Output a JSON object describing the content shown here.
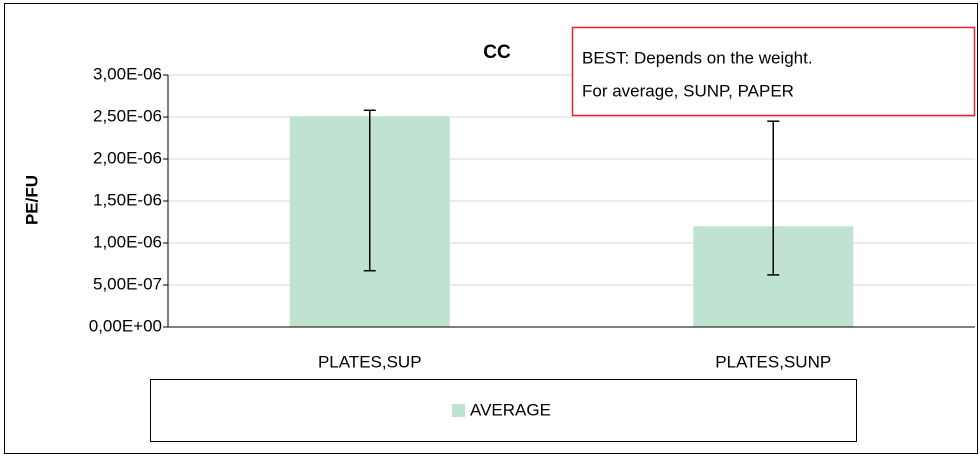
{
  "chart_data": {
    "type": "bar",
    "title": "CC",
    "y_label": "PE/FU",
    "annotation": [
      "BEST: Depends on the weight.",
      "For average, SUNP, PAPER"
    ],
    "categories": [
      "PLATES,SUP",
      "PLATES,SUNP"
    ],
    "series": [
      {
        "name": "AVERAGE",
        "color": "#bfe3d0",
        "values": [
          2.51e-06,
          1.2e-06
        ]
      }
    ],
    "error_plus": [
      7e-08,
      1.25e-06
    ],
    "error_minus": [
      1.84e-06,
      5.8e-07
    ],
    "ylim": [
      0,
      3e-06
    ],
    "yticks": [
      {
        "value": 0,
        "label": "0,00E+00"
      },
      {
        "value": 5e-07,
        "label": "5,00E-07"
      },
      {
        "value": 1e-06,
        "label": "1,00E-06"
      },
      {
        "value": 1.5e-06,
        "label": "1,50E-06"
      },
      {
        "value": 2e-06,
        "label": "2,00E-06"
      },
      {
        "value": 2.5e-06,
        "label": "2,50E-06"
      },
      {
        "value": 3e-06,
        "label": "3,00E-06"
      }
    ],
    "grid": true,
    "legend": "bottom"
  }
}
